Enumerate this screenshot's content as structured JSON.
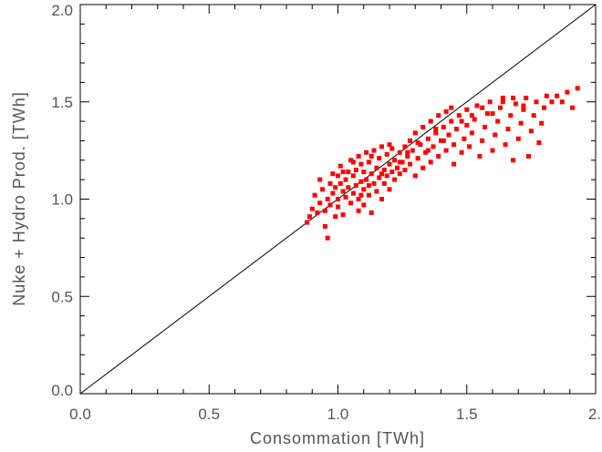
{
  "chart_data": {
    "type": "scatter",
    "title": "",
    "xlabel": "Consommation [TWh]",
    "ylabel": "Nuke + Hydro Prod. [TWh]",
    "xlim": [
      0.0,
      2.0
    ],
    "ylim": [
      0.0,
      2.0
    ],
    "x_tick_labels": [
      "0.0",
      "0.5",
      "1.0",
      "1.5",
      "2."
    ],
    "y_tick_labels": [
      "0.0",
      "0.5",
      "1.0",
      "1.5",
      "2.0"
    ],
    "x_tick_values": [
      0.0,
      0.5,
      1.0,
      1.5,
      2.0
    ],
    "y_tick_values": [
      0.0,
      0.5,
      1.0,
      1.5,
      2.0
    ],
    "grid": false,
    "reference_line": {
      "from": [
        0.0,
        0.0
      ],
      "to": [
        2.0,
        2.0
      ],
      "color": "#000000"
    },
    "marker_color": "#ff0000",
    "series": [
      {
        "points": [
          [
            0.88,
            0.88
          ],
          [
            0.89,
            0.91
          ],
          [
            0.9,
            0.95
          ],
          [
            0.91,
            1.02
          ],
          [
            0.92,
            0.93
          ],
          [
            0.93,
            0.98
          ],
          [
            0.93,
            1.1
          ],
          [
            0.94,
            1.05
          ],
          [
            0.95,
            0.86
          ],
          [
            0.95,
            0.94
          ],
          [
            0.96,
            0.8
          ],
          [
            0.96,
            1.0
          ],
          [
            0.97,
            1.08
          ],
          [
            0.97,
            0.97
          ],
          [
            0.98,
            1.13
          ],
          [
            0.98,
            1.03
          ],
          [
            0.99,
            0.91
          ],
          [
            0.99,
            1.06
          ],
          [
            1.0,
            1.0
          ],
          [
            1.0,
            1.12
          ],
          [
            1.0,
            0.96
          ],
          [
            1.01,
            1.08
          ],
          [
            1.01,
            1.17
          ],
          [
            1.02,
            1.04
          ],
          [
            1.02,
            0.92
          ],
          [
            1.03,
            1.1
          ],
          [
            1.03,
            1.01
          ],
          [
            1.04,
            1.14
          ],
          [
            1.04,
            1.06
          ],
          [
            1.05,
            0.98
          ],
          [
            1.05,
            1.2
          ],
          [
            1.06,
            1.03
          ],
          [
            1.06,
            1.12
          ],
          [
            1.07,
            1.07
          ],
          [
            1.07,
            1.15
          ],
          [
            1.08,
            1.0
          ],
          [
            1.08,
            1.22
          ],
          [
            1.08,
            0.94
          ],
          [
            1.09,
            1.09
          ],
          [
            1.09,
            1.18
          ],
          [
            1.1,
            1.05
          ],
          [
            1.1,
            1.14
          ],
          [
            1.1,
            0.97
          ],
          [
            1.11,
            1.24
          ],
          [
            1.11,
            1.1
          ],
          [
            1.12,
            1.02
          ],
          [
            1.12,
            1.19
          ],
          [
            1.12,
            1.07
          ],
          [
            1.13,
            1.13
          ],
          [
            1.13,
            0.93
          ],
          [
            1.14,
            1.25
          ],
          [
            1.14,
            1.08
          ],
          [
            1.15,
            1.16
          ],
          [
            1.15,
            1.04
          ],
          [
            1.16,
            1.21
          ],
          [
            1.16,
            1.11
          ],
          [
            1.17,
            1.27
          ],
          [
            1.17,
            1.0
          ],
          [
            1.18,
            1.15
          ],
          [
            1.18,
            1.08
          ],
          [
            1.19,
            1.23
          ],
          [
            1.19,
            1.12
          ],
          [
            1.2,
            1.18
          ],
          [
            1.2,
            1.05
          ],
          [
            1.21,
            1.26
          ],
          [
            1.21,
            1.14
          ],
          [
            1.22,
            1.2
          ],
          [
            1.22,
            1.1
          ],
          [
            1.23,
            1.16
          ],
          [
            1.24,
            1.24
          ],
          [
            1.24,
            1.13
          ],
          [
            1.25,
            1.19
          ],
          [
            1.26,
            1.27
          ],
          [
            1.26,
            1.15
          ],
          [
            1.27,
            1.22
          ],
          [
            1.28,
            1.3
          ],
          [
            1.28,
            1.18
          ],
          [
            1.29,
            1.25
          ],
          [
            1.3,
            1.12
          ],
          [
            1.3,
            1.34
          ],
          [
            1.31,
            1.21
          ],
          [
            1.32,
            1.28
          ],
          [
            1.33,
            1.16
          ],
          [
            1.33,
            1.37
          ],
          [
            1.34,
            1.24
          ],
          [
            1.35,
            1.31
          ],
          [
            1.36,
            1.19
          ],
          [
            1.36,
            1.4
          ],
          [
            1.37,
            1.27
          ],
          [
            1.38,
            1.34
          ],
          [
            1.39,
            1.22
          ],
          [
            1.39,
            1.43
          ],
          [
            1.4,
            1.3
          ],
          [
            1.41,
            1.37
          ],
          [
            1.42,
            1.25
          ],
          [
            1.42,
            1.45
          ],
          [
            1.43,
            1.33
          ],
          [
            1.44,
            1.4
          ],
          [
            1.45,
            1.18
          ],
          [
            1.45,
            1.28
          ],
          [
            1.46,
            1.36
          ],
          [
            1.47,
            1.43
          ],
          [
            1.48,
            1.24
          ],
          [
            1.49,
            1.31
          ],
          [
            1.5,
            1.38
          ],
          [
            1.5,
            1.46
          ],
          [
            1.51,
            1.27
          ],
          [
            1.52,
            1.34
          ],
          [
            1.53,
            1.41
          ],
          [
            1.54,
            1.48
          ],
          [
            1.55,
            1.22
          ],
          [
            1.56,
            1.3
          ],
          [
            1.57,
            1.37
          ],
          [
            1.58,
            1.44
          ],
          [
            1.59,
            1.5
          ],
          [
            1.6,
            1.25
          ],
          [
            1.61,
            1.33
          ],
          [
            1.62,
            1.4
          ],
          [
            1.63,
            1.47
          ],
          [
            1.64,
            1.52
          ],
          [
            1.65,
            1.28
          ],
          [
            1.66,
            1.36
          ],
          [
            1.67,
            1.43
          ],
          [
            1.68,
            1.2
          ],
          [
            1.69,
            1.49
          ],
          [
            1.7,
            1.31
          ],
          [
            1.71,
            1.39
          ],
          [
            1.72,
            1.46
          ],
          [
            1.73,
            1.52
          ],
          [
            1.74,
            1.22
          ],
          [
            1.75,
            1.35
          ],
          [
            1.76,
            1.43
          ],
          [
            1.77,
            1.5
          ],
          [
            1.78,
            1.29
          ],
          [
            1.79,
            1.39
          ],
          [
            1.8,
            1.47
          ],
          [
            1.81,
            1.53
          ],
          [
            1.83,
            1.5
          ],
          [
            1.85,
            1.53
          ],
          [
            1.87,
            1.5
          ],
          [
            1.89,
            1.55
          ],
          [
            1.91,
            1.47
          ],
          [
            1.93,
            1.57
          ],
          [
            1.02,
            1.14
          ],
          [
            1.06,
            1.19
          ],
          [
            1.09,
            1.02
          ],
          [
            1.13,
            1.22
          ],
          [
            1.17,
            1.13
          ],
          [
            1.2,
            1.28
          ],
          [
            1.24,
            1.19
          ],
          [
            1.27,
            1.24
          ],
          [
            1.31,
            1.29
          ],
          [
            1.35,
            1.25
          ],
          [
            1.38,
            1.36
          ],
          [
            1.41,
            1.3
          ],
          [
            1.44,
            1.47
          ],
          [
            1.48,
            1.4
          ],
          [
            1.52,
            1.43
          ],
          [
            1.56,
            1.47
          ],
          [
            1.6,
            1.44
          ],
          [
            1.64,
            1.5
          ],
          [
            1.68,
            1.52
          ],
          [
            1.72,
            1.48
          ]
        ]
      }
    ]
  }
}
